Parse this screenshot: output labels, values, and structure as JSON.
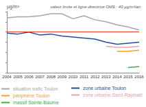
{
  "chart_data": {
    "type": "line",
    "y_label": "µg/m³",
    "annotation": {
      "text": "valeur limite et ligne directrice OMS : 40 µg/m³/an",
      "value": 40,
      "color": "#e03c31"
    },
    "categories": [
      "2004",
      "2005",
      "2006",
      "2007",
      "2008",
      "2009",
      "2010",
      "2011",
      "2012",
      "2013",
      "2014",
      "2015",
      "2016"
    ],
    "series": [
      {
        "name": "situation trafic Toulon",
        "color": "#a6a6a6",
        "values": [
          54,
          55,
          55,
          56,
          58,
          58,
          53,
          56,
          52,
          50,
          47,
          45,
          42
        ]
      },
      {
        "name": "zone urbaine Toulon",
        "color": "#1f4e9c",
        "values": [
          39,
          38,
          40,
          37,
          38,
          36,
          35,
          34,
          33,
          30,
          28,
          29,
          30
        ]
      },
      {
        "name": "périphérie Toulon",
        "color": "#f0a030",
        "values": [
          null,
          null,
          null,
          null,
          null,
          null,
          null,
          null,
          null,
          null,
          21,
          21,
          22
        ]
      },
      {
        "name": "zone urbaine Saint-Raphaël",
        "color": "#e8a0b4",
        "values": [
          null,
          null,
          null,
          null,
          null,
          null,
          null,
          null,
          null,
          26,
          25,
          25,
          26
        ]
      },
      {
        "name": "massif Sainte-Baume",
        "color": "#3cb043",
        "values": [
          null,
          null,
          null,
          null,
          null,
          null,
          null,
          null,
          null,
          null,
          null,
          5,
          6
        ]
      }
    ],
    "ylim": [
      0,
      60
    ],
    "yticks": [
      0,
      10,
      20,
      30,
      40,
      50,
      60
    ],
    "tick_labels": "x",
    "grid": false,
    "legend": "bottom",
    "marker": "none"
  }
}
